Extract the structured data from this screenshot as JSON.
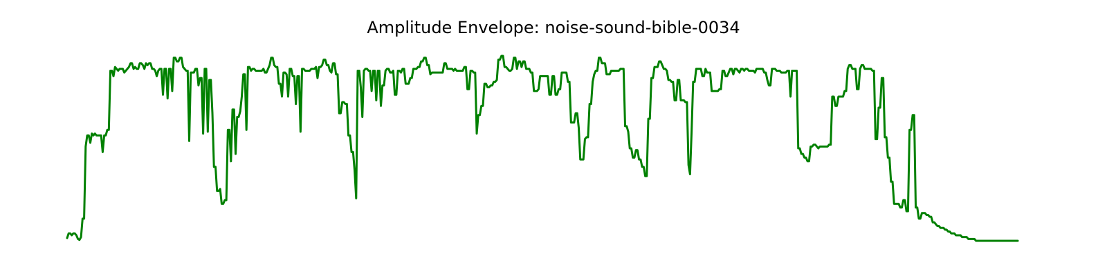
{
  "chart_data": {
    "type": "line",
    "title": "Amplitude Envelope: noise-sound-bible-0034",
    "xlabel": "",
    "ylabel": "",
    "axes_visible": false,
    "grid": false,
    "legend": "none",
    "x_range": [
      0,
      591
    ],
    "y_range": [
      0,
      1
    ],
    "series": [
      {
        "color": "#008000",
        "y": [
          0.015,
          0.04,
          0.04,
          0.03,
          0.04,
          0.04,
          0.03,
          0.01,
          0.005,
          0.02,
          0.12,
          0.12,
          0.51,
          0.57,
          0.57,
          0.53,
          0.58,
          0.57,
          0.58,
          0.57,
          0.57,
          0.57,
          0.57,
          0.48,
          0.57,
          0.57,
          0.6,
          0.6,
          0.92,
          0.92,
          0.89,
          0.94,
          0.93,
          0.92,
          0.93,
          0.93,
          0.93,
          0.91,
          0.92,
          0.93,
          0.94,
          0.96,
          0.96,
          0.93,
          0.94,
          0.93,
          0.93,
          0.96,
          0.96,
          0.95,
          0.93,
          0.96,
          0.95,
          0.96,
          0.96,
          0.93,
          0.93,
          0.92,
          0.89,
          0.92,
          0.93,
          0.93,
          0.79,
          0.93,
          0.93,
          0.77,
          0.93,
          0.93,
          0.81,
          0.99,
          0.99,
          0.97,
          0.97,
          0.99,
          0.99,
          0.94,
          0.93,
          0.92,
          0.92,
          0.54,
          0.91,
          0.91,
          0.91,
          0.93,
          0.93,
          0.84,
          0.88,
          0.88,
          0.58,
          0.93,
          0.93,
          0.59,
          0.87,
          0.87,
          0.69,
          0.4,
          0.4,
          0.27,
          0.27,
          0.28,
          0.2,
          0.2,
          0.22,
          0.22,
          0.6,
          0.6,
          0.43,
          0.71,
          0.71,
          0.47,
          0.67,
          0.67,
          0.7,
          0.78,
          0.9,
          0.9,
          0.6,
          0.94,
          0.94,
          0.92,
          0.93,
          0.93,
          0.92,
          0.92,
          0.92,
          0.92,
          0.92,
          0.93,
          0.91,
          0.91,
          0.93,
          0.95,
          0.99,
          0.99,
          0.95,
          0.94,
          0.94,
          0.85,
          0.85,
          0.78,
          0.91,
          0.91,
          0.9,
          0.78,
          0.93,
          0.93,
          0.89,
          0.89,
          0.74,
          0.89,
          0.89,
          0.59,
          0.93,
          0.93,
          0.92,
          0.92,
          0.92,
          0.92,
          0.93,
          0.93,
          0.93,
          0.94,
          0.88,
          0.94,
          0.94,
          0.95,
          0.98,
          0.98,
          0.95,
          0.95,
          0.92,
          0.91,
          0.96,
          0.96,
          0.9,
          0.9,
          0.69,
          0.69,
          0.75,
          0.75,
          0.74,
          0.74,
          0.57,
          0.57,
          0.48,
          0.48,
          0.38,
          0.23,
          0.92,
          0.92,
          0.83,
          0.67,
          0.92,
          0.93,
          0.93,
          0.92,
          0.92,
          0.81,
          0.92,
          0.92,
          0.76,
          0.92,
          0.92,
          0.73,
          0.84,
          0.84,
          0.92,
          0.93,
          0.93,
          0.91,
          0.91,
          0.92,
          0.79,
          0.79,
          0.92,
          0.92,
          0.91,
          0.93,
          0.93,
          0.85,
          0.85,
          0.85,
          0.88,
          0.88,
          0.93,
          0.93,
          0.93,
          0.94,
          0.94,
          0.97,
          0.97,
          0.99,
          0.99,
          0.95,
          0.95,
          0.9,
          0.91,
          0.91,
          0.91,
          0.91,
          0.91,
          0.91,
          0.91,
          0.91,
          0.96,
          0.96,
          0.93,
          0.93,
          0.93,
          0.93,
          0.92,
          0.93,
          0.92,
          0.92,
          0.92,
          0.92,
          0.92,
          0.94,
          0.94,
          0.82,
          0.82,
          0.92,
          0.92,
          0.91,
          0.91,
          0.58,
          0.68,
          0.68,
          0.73,
          0.73,
          0.85,
          0.85,
          0.83,
          0.83,
          0.84,
          0.84,
          0.86,
          0.86,
          0.87,
          0.98,
          0.98,
          1.0,
          1.0,
          0.94,
          0.94,
          0.93,
          0.92,
          0.92,
          0.93,
          0.99,
          0.99,
          0.93,
          0.97,
          0.97,
          0.94,
          0.97,
          0.97,
          0.93,
          0.93,
          0.93,
          0.91,
          0.91,
          0.81,
          0.81,
          0.81,
          0.82,
          0.89,
          0.89,
          0.89,
          0.89,
          0.89,
          0.89,
          0.79,
          0.79,
          0.89,
          0.89,
          0.79,
          0.79,
          0.82,
          0.82,
          0.91,
          0.91,
          0.91,
          0.91,
          0.86,
          0.86,
          0.64,
          0.64,
          0.64,
          0.69,
          0.69,
          0.61,
          0.44,
          0.44,
          0.44,
          0.55,
          0.56,
          0.56,
          0.74,
          0.74,
          0.86,
          0.9,
          0.92,
          0.92,
          0.99,
          0.99,
          0.96,
          0.96,
          0.96,
          0.9,
          0.9,
          0.9,
          0.92,
          0.92,
          0.92,
          0.92,
          0.92,
          0.92,
          0.93,
          0.93,
          0.93,
          0.62,
          0.62,
          0.59,
          0.5,
          0.5,
          0.45,
          0.45,
          0.49,
          0.49,
          0.44,
          0.44,
          0.4,
          0.4,
          0.35,
          0.35,
          0.66,
          0.66,
          0.88,
          0.88,
          0.94,
          0.94,
          0.94,
          0.97,
          0.97,
          0.95,
          0.93,
          0.93,
          0.92,
          0.87,
          0.87,
          0.86,
          0.86,
          0.76,
          0.76,
          0.87,
          0.87,
          0.76,
          0.76,
          0.76,
          0.75,
          0.75,
          0.41,
          0.36,
          0.59,
          0.86,
          0.86,
          0.93,
          0.93,
          0.93,
          0.93,
          0.89,
          0.89,
          0.93,
          0.91,
          0.91,
          0.91,
          0.81,
          0.81,
          0.81,
          0.81,
          0.81,
          0.82,
          0.82,
          0.92,
          0.92,
          0.89,
          0.89,
          0.91,
          0.93,
          0.93,
          0.9,
          0.93,
          0.93,
          0.92,
          0.91,
          0.93,
          0.93,
          0.92,
          0.93,
          0.93,
          0.92,
          0.92,
          0.92,
          0.92,
          0.91,
          0.93,
          0.93,
          0.93,
          0.93,
          0.93,
          0.91,
          0.91,
          0.87,
          0.84,
          0.84,
          0.93,
          0.93,
          0.93,
          0.92,
          0.92,
          0.92,
          0.91,
          0.91,
          0.91,
          0.91,
          0.92,
          0.92,
          0.78,
          0.92,
          0.92,
          0.92,
          0.92,
          0.5,
          0.5,
          0.47,
          0.47,
          0.45,
          0.45,
          0.43,
          0.43,
          0.51,
          0.51,
          0.52,
          0.52,
          0.51,
          0.5,
          0.51,
          0.51,
          0.51,
          0.51,
          0.51,
          0.51,
          0.52,
          0.52,
          0.78,
          0.78,
          0.73,
          0.73,
          0.78,
          0.78,
          0.78,
          0.78,
          0.81,
          0.81,
          0.93,
          0.95,
          0.95,
          0.93,
          0.93,
          0.93,
          0.82,
          0.82,
          0.93,
          0.95,
          0.95,
          0.93,
          0.93,
          0.93,
          0.93,
          0.93,
          0.92,
          0.92,
          0.55,
          0.55,
          0.72,
          0.72,
          0.88,
          0.88,
          0.56,
          0.56,
          0.45,
          0.45,
          0.32,
          0.32,
          0.2,
          0.2,
          0.2,
          0.2,
          0.18,
          0.18,
          0.22,
          0.22,
          0.16,
          0.16,
          0.6,
          0.6,
          0.68,
          0.68,
          0.18,
          0.18,
          0.12,
          0.12,
          0.15,
          0.15,
          0.15,
          0.14,
          0.14,
          0.13,
          0.13,
          0.1,
          0.1,
          0.09,
          0.08,
          0.08,
          0.07,
          0.07,
          0.07,
          0.06,
          0.06,
          0.05,
          0.05,
          0.04,
          0.04,
          0.04,
          0.03,
          0.03,
          0.03,
          0.03,
          0.02,
          0.02,
          0.02,
          0.02,
          0.01,
          0.01,
          0.01,
          0.01,
          0.01,
          0.0,
          0.0,
          0.0,
          0.0,
          0.0,
          0.0,
          0.0,
          0.0,
          0.0,
          0.0,
          0.0,
          0.0,
          0.0,
          0.0,
          0.0,
          0.0,
          0.0,
          0.0,
          0.0,
          0.0,
          0.0,
          0.0,
          0.0,
          0.0,
          0.0,
          0.0,
          0.0,
          0.0
        ]
      }
    ]
  }
}
